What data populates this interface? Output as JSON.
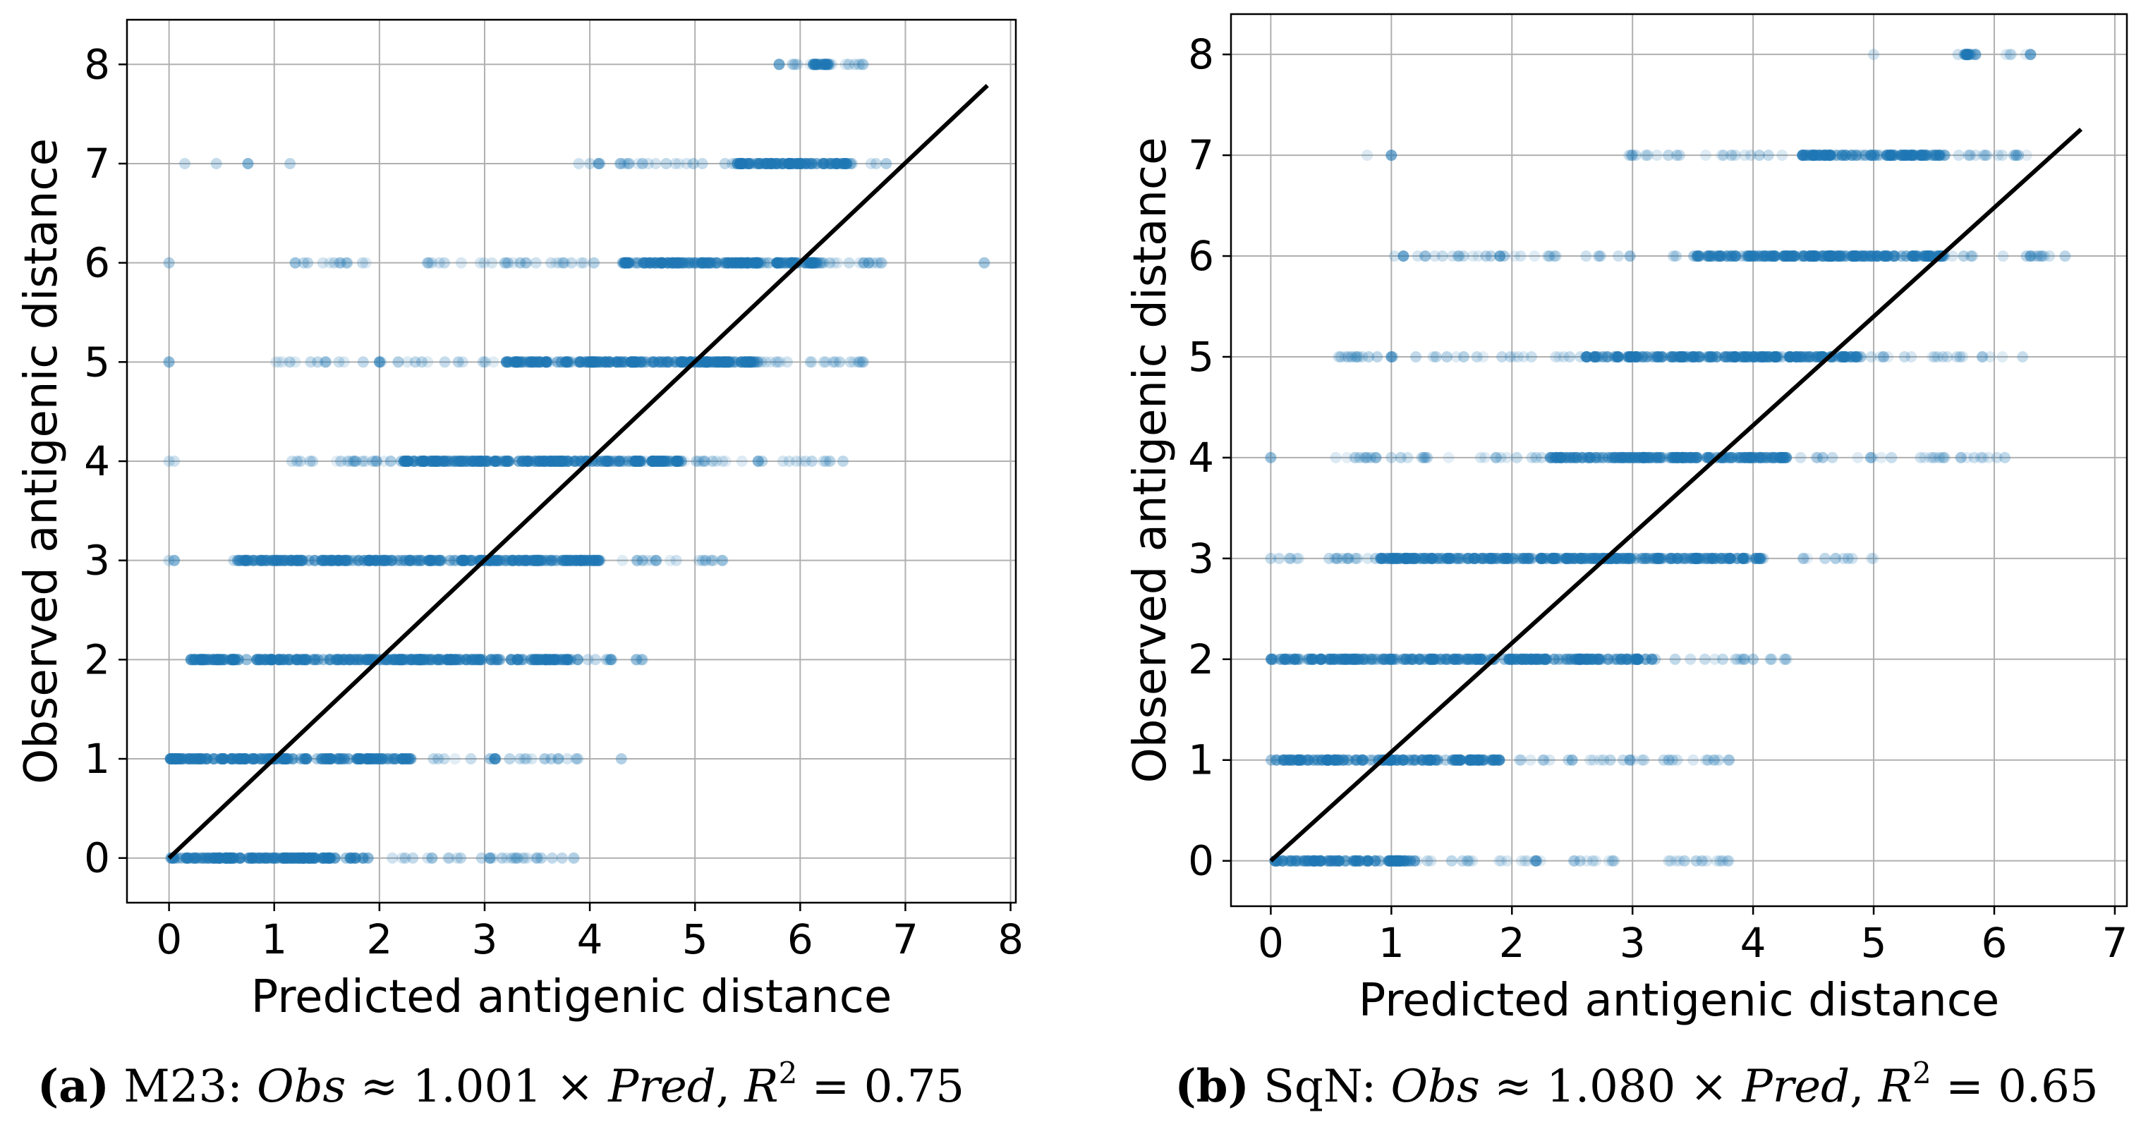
{
  "colors": {
    "point": "#1f77b4",
    "fit_line": "#000000",
    "grid": "#b0b0b0"
  },
  "chart_data": [
    {
      "type": "scatter",
      "id": "a",
      "xlabel": "Predicted antigenic distance",
      "ylabel": "Observed antigenic distance",
      "xlim": [
        -0.4,
        8.05
      ],
      "ylim": [
        -0.45,
        8.45
      ],
      "xticks": [
        "0",
        "1",
        "2",
        "3",
        "4",
        "5",
        "6",
        "7",
        "8"
      ],
      "yticks": [
        "0",
        "1",
        "2",
        "3",
        "4",
        "5",
        "6",
        "7",
        "8"
      ],
      "grid": true,
      "fit_line": {
        "slope": 1.001,
        "x": [
          0,
          7.78
        ]
      },
      "caption": {
        "label": "(a)",
        "model": "M23:",
        "obs": "Obs",
        "approx": " ≈ 1.001 × ",
        "pred": "Pred",
        "r2_sep": ", ",
        "r2_symbol": "R",
        "r2_exp": "2",
        "r2_eq": " = 0.75"
      },
      "series": [
        {
          "y": 0,
          "dense": [
            0,
            1.9
          ],
          "sparse": [
            1.9,
            3.9
          ],
          "extra": [
            0.3,
            0.6,
            1.2,
            2.5,
            3.05,
            3.5,
            3.85
          ]
        },
        {
          "y": 1,
          "dense": [
            0,
            2.3
          ],
          "sparse": [
            2.3,
            3.9
          ],
          "extra": [
            3.1,
            3.7,
            4.3
          ]
        },
        {
          "y": 2,
          "dense": [
            0.2,
            3.9
          ],
          "sparse": [
            3.9,
            4.5
          ],
          "extra": [
            4.2,
            4.5
          ]
        },
        {
          "y": 3,
          "dense": [
            0.6,
            4.1
          ],
          "sparse": [
            4.1,
            5.3
          ],
          "extra": [
            0,
            0.05,
            4.5,
            5.1
          ]
        },
        {
          "y": 4,
          "dense": [
            2.2,
            4.9
          ],
          "sparse": [
            1.0,
            6.6
          ],
          "extra": [
            0,
            0.05,
            1.7
          ]
        },
        {
          "y": 5,
          "dense": [
            3.2,
            5.6
          ],
          "sparse": [
            1.0,
            6.6
          ],
          "extra": [
            0,
            2.0,
            6.6
          ]
        },
        {
          "y": 6,
          "dense": [
            4.3,
            6.2
          ],
          "sparse": [
            1.1,
            6.9
          ],
          "extra": [
            0,
            1.2,
            6.6,
            7.75
          ]
        },
        {
          "y": 7,
          "dense": [
            5.4,
            6.5
          ],
          "sparse": [
            3.8,
            6.9
          ],
          "extra": [
            0.15,
            0.45,
            0.75,
            1.15,
            4.5
          ]
        },
        {
          "y": 8,
          "dense": [
            6.1,
            6.3
          ],
          "sparse": [
            5.8,
            6.6
          ],
          "extra": [
            5.8,
            6.2,
            6.3,
            6.6
          ]
        }
      ]
    },
    {
      "type": "scatter",
      "id": "b",
      "xlabel": "Predicted antigenic distance",
      "ylabel": "Observed antigenic distance",
      "xlim": [
        -0.33,
        7.1
      ],
      "ylim": [
        -0.45,
        8.4
      ],
      "xticks": [
        "0",
        "1",
        "2",
        "3",
        "4",
        "5",
        "6",
        "7"
      ],
      "yticks": [
        "0",
        "1",
        "2",
        "3",
        "4",
        "5",
        "6",
        "7",
        "8"
      ],
      "grid": true,
      "fit_line": {
        "slope": 1.08,
        "x": [
          0,
          6.72
        ]
      },
      "caption": {
        "label": "(b)",
        "model": "SqN:",
        "obs": "Obs",
        "approx": " ≈ 1.080 × ",
        "pred": "Pred",
        "r2_sep": ", ",
        "r2_symbol": "R",
        "r2_exp": "2",
        "r2_eq": " = 0.65"
      },
      "series": [
        {
          "y": 0,
          "dense": [
            0,
            1.2
          ],
          "sparse": [
            1.2,
            3.9
          ],
          "extra": [
            0.5,
            1.5,
            2.2,
            3.3,
            3.7
          ]
        },
        {
          "y": 1,
          "dense": [
            0,
            1.9
          ],
          "sparse": [
            1.9,
            3.8
          ],
          "extra": [
            2.5,
            3.3,
            3.8
          ]
        },
        {
          "y": 2,
          "dense": [
            0,
            3.2
          ],
          "sparse": [
            3.2,
            4.3
          ],
          "extra": [
            3.6,
            4.0
          ]
        },
        {
          "y": 3,
          "dense": [
            0.9,
            4.1
          ],
          "sparse": [
            0,
            5.0
          ],
          "extra": [
            0,
            0.55,
            4.75
          ]
        },
        {
          "y": 4,
          "dense": [
            2.3,
            4.3
          ],
          "sparse": [
            0.5,
            6.3
          ],
          "extra": [
            0,
            1.0
          ]
        },
        {
          "y": 5,
          "dense": [
            2.6,
            4.9
          ],
          "sparse": [
            0.5,
            6.3
          ],
          "extra": [
            1.0,
            1.6,
            5.9
          ]
        },
        {
          "y": 6,
          "dense": [
            3.5,
            5.6
          ],
          "sparse": [
            1.0,
            6.6
          ],
          "extra": [
            1.1,
            1.9,
            6.3
          ]
        },
        {
          "y": 7,
          "dense": [
            4.4,
            5.6
          ],
          "sparse": [
            2.9,
            6.3
          ],
          "extra": [
            0.8,
            1.0,
            5.8,
            6.2
          ]
        },
        {
          "y": 8,
          "dense": [
            5.75,
            5.85
          ],
          "sparse": [
            5.7,
            6.3
          ],
          "extra": [
            5.0,
            5.7,
            5.8,
            6.3
          ]
        }
      ]
    }
  ]
}
